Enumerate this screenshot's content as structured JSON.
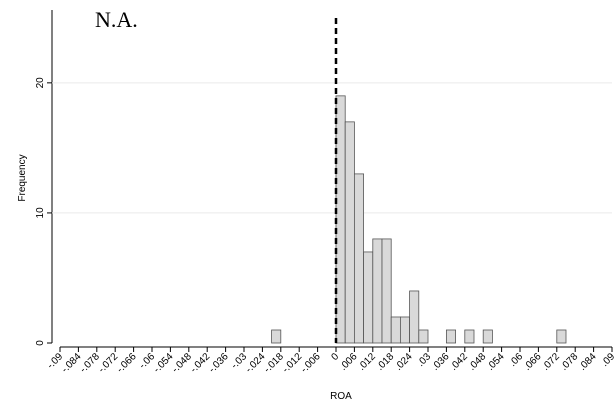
{
  "chart_data": {
    "type": "histogram",
    "annotation": "N.A.",
    "x_label": "ROA",
    "y_label": "Frequency",
    "bins": [
      -0.021,
      -0.018,
      -0.015,
      -0.012,
      -0.009,
      -0.006,
      -0.003,
      0,
      0.003,
      0.006,
      0.009,
      0.012,
      0.015,
      0.018,
      0.021,
      0.024,
      0.027,
      0.03,
      0.033,
      0.036,
      0.039,
      0.042,
      0.045,
      0.048,
      0.051,
      0.054,
      0.057,
      0.06,
      0.063,
      0.066,
      0.069,
      0.072,
      0.075
    ],
    "values": [
      1,
      0,
      0,
      0,
      0,
      0,
      0,
      19,
      17,
      13,
      7,
      8,
      8,
      2,
      2,
      4,
      1,
      0,
      0,
      1,
      0,
      1,
      0,
      1,
      0,
      0,
      0,
      0,
      0,
      0,
      0,
      1
    ],
    "color": "#d9d9d9",
    "edge_color": "#555555",
    "vline": 0,
    "vline_color": "#000000",
    "xlim": [
      -0.09,
      0.09
    ],
    "xticks": [
      {
        "value": -0.09,
        "label": "-.09"
      },
      {
        "value": -0.084,
        "label": "-.084"
      },
      {
        "value": -0.078,
        "label": "-.078"
      },
      {
        "value": -0.072,
        "label": "-.072"
      },
      {
        "value": -0.066,
        "label": "-.066"
      },
      {
        "value": -0.06,
        "label": "-.06"
      },
      {
        "value": -0.054,
        "label": "-.054"
      },
      {
        "value": -0.048,
        "label": "-.048"
      },
      {
        "value": -0.042,
        "label": "-.042"
      },
      {
        "value": -0.036,
        "label": "-.036"
      },
      {
        "value": -0.03,
        "label": "-.03"
      },
      {
        "value": -0.024,
        "label": "-.024"
      },
      {
        "value": -0.018,
        "label": "-.018"
      },
      {
        "value": -0.012,
        "label": "-.012"
      },
      {
        "value": -0.006,
        "label": "-.006"
      },
      0,
      {
        "value": 0.006,
        "label": ".006"
      },
      {
        "value": 0.012,
        "label": ".012"
      },
      {
        "value": 0.018,
        "label": ".018"
      },
      {
        "value": 0.024,
        "label": ".024"
      },
      {
        "value": 0.03,
        "label": ".03"
      },
      {
        "value": 0.036,
        "label": ".036"
      },
      {
        "value": 0.042,
        "label": ".042"
      },
      {
        "value": 0.048,
        "label": ".048"
      },
      {
        "value": 0.054,
        "label": ".054"
      },
      {
        "value": 0.06,
        "label": ".06"
      },
      {
        "value": 0.066,
        "label": ".066"
      },
      {
        "value": 0.072,
        "label": ".072"
      },
      {
        "value": 0.078,
        "label": ".078"
      },
      {
        "value": 0.084,
        "label": ".084"
      },
      {
        "value": 0.09,
        "label": ".09"
      }
    ],
    "ylim": [
      0,
      25.6
    ],
    "yticks": [
      0,
      10,
      20
    ],
    "grid": true
  }
}
